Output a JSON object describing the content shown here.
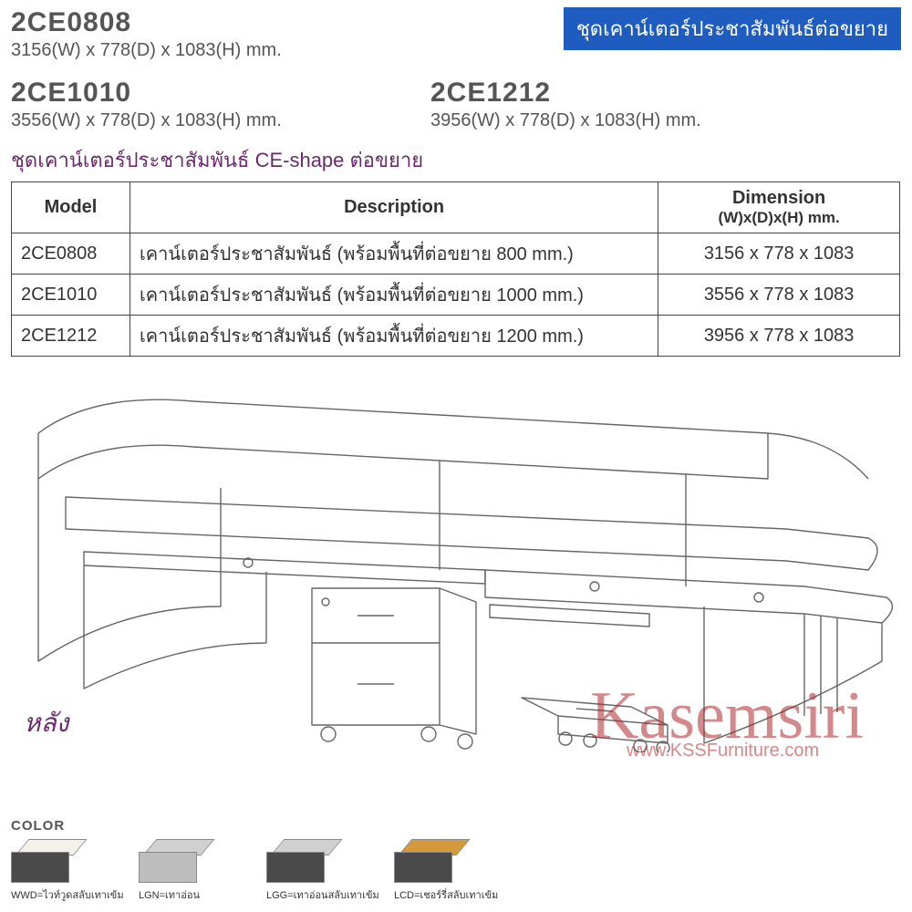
{
  "badge": "ชุดเคาน์เตอร์ประชาสัมพันธ์ต่อขยาย",
  "models": [
    {
      "code": "2CE0808",
      "dim_text": "3156(W) x 778(D) x 1083(H) mm."
    },
    {
      "code": "2CE1010",
      "dim_text": "3556(W) x 778(D) x 1083(H) mm."
    },
    {
      "code": "2CE1212",
      "dim_text": "3956(W) x 778(D) x 1083(H) mm."
    }
  ],
  "thai_subtitle": "ชุดเคาน์เตอร์ประชาสัมพันธ์ CE-shape ต่อขยาย",
  "table": {
    "headers": {
      "model": "Model",
      "description": "Description",
      "dimension_line1": "Dimension",
      "dimension_line2": "(W)x(D)x(H) mm."
    },
    "rows": [
      {
        "model": "2CE0808",
        "desc": "เคาน์เตอร์ประชาสัมพันธ์ (พร้อมพื้นที่ต่อขยาย 800 mm.)",
        "dim": "3156 x 778 x 1083"
      },
      {
        "model": "2CE1010",
        "desc": "เคาน์เตอร์ประชาสัมพันธ์ (พร้อมพื้นที่ต่อขยาย 1000 mm.)",
        "dim": "3556 x 778 x 1083"
      },
      {
        "model": "2CE1212",
        "desc": "เคาน์เตอร์ประชาสัมพันธ์ (พร้อมพื้นที่ต่อขยาย 1200 mm.)",
        "dim": "3956 x 778 x 1083"
      }
    ]
  },
  "back_label": "หลัง",
  "watermark": {
    "name": "Kasemsiri",
    "url": "www.KSSFurniture.com"
  },
  "color_section": {
    "title": "COLOR",
    "swatches": [
      {
        "code": "WWD",
        "label": "WWD=ไวท์วูดสลับเทาเข้ม",
        "top_color": "#f4f1ea",
        "side_color": "#4a4a4a"
      },
      {
        "code": "LGN",
        "label": "LGN=เทาอ่อน",
        "top_color": "#d0d0d0",
        "side_color": "#bdbdbd"
      },
      {
        "code": "LGG",
        "label": "LGG=เทาอ่อนสลับเทาเข้ม",
        "top_color": "#d0d0d0",
        "side_color": "#4a4a4a"
      },
      {
        "code": "LCD",
        "label": "LCD=เชอร์รี่สลับเทาเข้ม",
        "top_color": "#d49a3a",
        "side_color": "#4a4a4a"
      }
    ]
  },
  "style": {
    "heading_color": "#555555",
    "badge_bg": "#1f5cc0",
    "badge_fg": "#ffffff",
    "thai_color": "#6a2a6e",
    "border_color": "#444444",
    "watermark_color": "#b02a2a",
    "line_color": "#666666",
    "drawing_stroke_width": 1.4
  }
}
